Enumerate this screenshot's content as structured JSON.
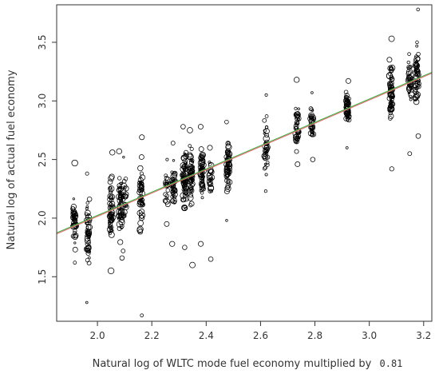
{
  "chart_data": {
    "type": "scatter",
    "title": "",
    "xlabel": "Natural log of WLTC mode fuel economy multiplied by",
    "xlabel_code": "0.81",
    "ylabel": "Natural log of actual fuel economy",
    "xlim": [
      1.85,
      3.23
    ],
    "ylim": [
      1.12,
      3.82
    ],
    "xticks": [
      "2.0",
      "2.2",
      "2.4",
      "2.6",
      "2.8",
      "3.0",
      "3.2"
    ],
    "yticks": [
      "1.5",
      "2.0",
      "2.5",
      "3.0",
      "3.5"
    ],
    "grid": false,
    "marker": "open-circle",
    "point_color": "#000000",
    "clusters": [
      {
        "x": 1.915,
        "y_min": 1.62,
        "y_max": 2.47,
        "y_center": 1.97,
        "n": 45
      },
      {
        "x": 1.965,
        "y_min": 1.28,
        "y_max": 2.38,
        "y_center": 1.88,
        "n": 55
      },
      {
        "x": 2.05,
        "y_min": 1.55,
        "y_max": 2.56,
        "y_center": 2.05,
        "n": 60
      },
      {
        "x": 2.085,
        "y_min": 1.66,
        "y_max": 2.57,
        "y_center": 2.12,
        "n": 55
      },
      {
        "x": 2.1,
        "y_min": 1.72,
        "y_max": 2.52,
        "y_center": 2.15,
        "n": 25
      },
      {
        "x": 2.16,
        "y_min": 1.17,
        "y_max": 2.69,
        "y_center": 2.2,
        "n": 60
      },
      {
        "x": 2.255,
        "y_min": 1.95,
        "y_max": 2.5,
        "y_center": 2.25,
        "n": 20
      },
      {
        "x": 2.28,
        "y_min": 1.78,
        "y_max": 2.64,
        "y_center": 2.28,
        "n": 40
      },
      {
        "x": 2.32,
        "y_min": 1.75,
        "y_max": 2.78,
        "y_center": 2.32,
        "n": 70
      },
      {
        "x": 2.345,
        "y_min": 1.6,
        "y_max": 2.75,
        "y_center": 2.33,
        "n": 60
      },
      {
        "x": 2.385,
        "y_min": 1.78,
        "y_max": 2.78,
        "y_center": 2.4,
        "n": 60
      },
      {
        "x": 2.415,
        "y_min": 1.65,
        "y_max": 2.6,
        "y_center": 2.35,
        "n": 25
      },
      {
        "x": 2.48,
        "y_min": 1.98,
        "y_max": 2.82,
        "y_center": 2.45,
        "n": 65
      },
      {
        "x": 2.62,
        "y_min": 2.23,
        "y_max": 3.05,
        "y_center": 2.62,
        "n": 40
      },
      {
        "x": 2.735,
        "y_min": 2.46,
        "y_max": 3.18,
        "y_center": 2.77,
        "n": 45
      },
      {
        "x": 2.79,
        "y_min": 2.5,
        "y_max": 3.07,
        "y_center": 2.82,
        "n": 35
      },
      {
        "x": 2.92,
        "y_min": 2.6,
        "y_max": 3.17,
        "y_center": 2.93,
        "n": 55
      },
      {
        "x": 3.08,
        "y_min": 2.42,
        "y_max": 3.53,
        "y_center": 3.08,
        "n": 70
      },
      {
        "x": 3.15,
        "y_min": 2.55,
        "y_max": 3.4,
        "y_center": 3.15,
        "n": 40
      },
      {
        "x": 3.175,
        "y_min": 2.7,
        "y_max": 3.78,
        "y_center": 3.25,
        "n": 55
      }
    ],
    "fit_lines": [
      {
        "x": [
          1.85,
          3.23
        ],
        "y": [
          1.87,
          3.24
        ],
        "color": "#e07070"
      },
      {
        "x": [
          1.85,
          3.23
        ],
        "y": [
          1.87,
          3.24
        ],
        "color": "#4caf50"
      }
    ]
  }
}
